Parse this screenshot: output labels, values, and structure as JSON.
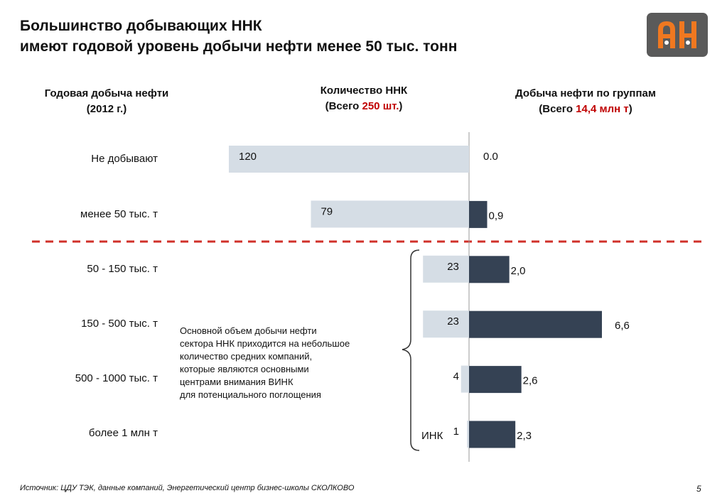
{
  "title": {
    "line1": "Большинство добывающих ННК",
    "line2": "имеют годовой уровень добычи нефти менее 50 тыс. тонн"
  },
  "logo": {
    "text": "АН",
    "bg_color": "#5a5a5a",
    "accent_color": "#f07820"
  },
  "columns": {
    "left": {
      "line1": "Годовая добыча нефти",
      "line2": "(2012 г.)"
    },
    "middle": {
      "line1": "Количество ННК",
      "line2_prefix": "(Всего ",
      "line2_accent": "250 шт.",
      "line2_suffix": ")"
    },
    "right": {
      "line1": "Добыча нефти по группам",
      "line2_prefix": "(Всего ",
      "line2_accent": "14,4 млн т",
      "line2_suffix": ")"
    }
  },
  "chart_data": {
    "type": "bar",
    "categories": [
      "Не добывают",
      "менее 50 тыс. т",
      "50 - 150 тыс. т",
      "150 - 500 тыс. т",
      "500 - 1000 тыс. т",
      "более 1 млн т"
    ],
    "series": [
      {
        "name": "Количество ННК",
        "values": [
          120,
          79,
          23,
          23,
          4,
          1
        ],
        "labels": [
          "120",
          "79",
          "23",
          "23",
          "4",
          "1"
        ],
        "color": "#d5dde5"
      },
      {
        "name": "Добыча нефти по группам",
        "values": [
          0.0,
          0.9,
          2.0,
          6.6,
          2.6,
          2.3
        ],
        "labels": [
          "0.0",
          "0,9",
          "2,0",
          "6,6",
          "2,6",
          "2,3"
        ],
        "color": "#354254"
      }
    ],
    "extra_label_last_count": "ИНК",
    "separator_color": "#d0302a"
  },
  "note": {
    "lines": [
      "Основной объем добычи нефти",
      "сектора ННК приходится на небольшое",
      "количество средних компаний,",
      "которые являются основными",
      "центрами внимания ВИНК",
      "для потенциального поглощения"
    ]
  },
  "source": "Источник: ЦДУ ТЭК, данные компаний, Энергетический центр бизнес-школы СКОЛКОВО",
  "page_number": "5"
}
